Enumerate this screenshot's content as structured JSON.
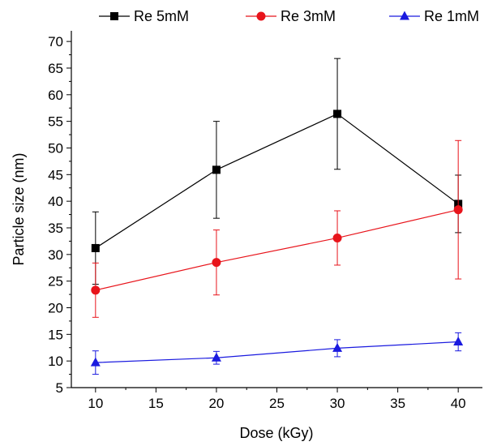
{
  "chart_data": {
    "type": "line",
    "title": "",
    "xlabel": "Dose (kGy)",
    "ylabel": "Particle size (nm)",
    "xlim": [
      8,
      42
    ],
    "ylim": [
      5,
      72
    ],
    "x_ticks": [
      10,
      15,
      20,
      25,
      30,
      35,
      40
    ],
    "y_ticks": [
      5,
      10,
      15,
      20,
      25,
      30,
      35,
      40,
      45,
      50,
      55,
      60,
      65,
      70
    ],
    "grid": false,
    "legend_position": "top",
    "x": [
      10,
      20,
      30,
      40
    ],
    "series": [
      {
        "name": "Re 5mM",
        "marker": "square",
        "color": "#000000",
        "values": [
          31.2,
          45.9,
          56.4,
          39.5
        ],
        "errors": [
          6.8,
          9.1,
          10.4,
          5.4
        ]
      },
      {
        "name": "Re 3mM",
        "marker": "circle",
        "color": "#e8141b",
        "values": [
          23.3,
          28.5,
          33.1,
          38.4
        ],
        "errors": [
          5.1,
          6.1,
          5.1,
          13.0
        ]
      },
      {
        "name": "Re 1mM",
        "marker": "triangle",
        "color": "#1a1adf",
        "values": [
          9.7,
          10.6,
          12.4,
          13.6
        ],
        "errors": [
          2.2,
          1.2,
          1.6,
          1.7
        ]
      }
    ]
  }
}
